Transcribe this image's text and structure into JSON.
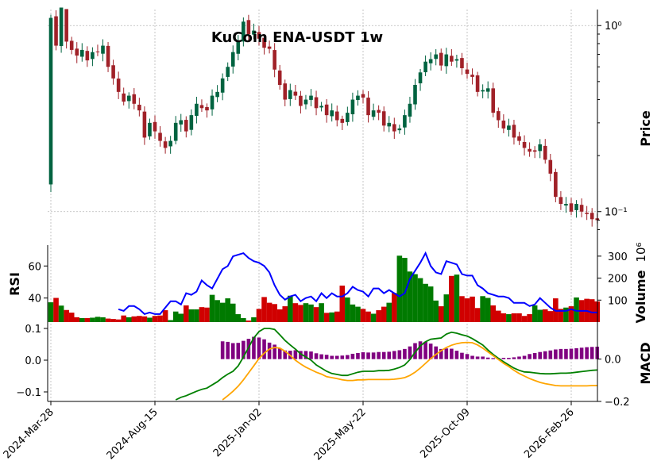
{
  "colors": {
    "up": "#006340",
    "down": "#A02128",
    "vol_up": "#007a00",
    "vol_down": "#d00000",
    "rsi_line": "#0000ff",
    "macd_line": "#008000",
    "signal_line": "#ffa500",
    "hist": "#800080",
    "grid": "#b8b8b8"
  },
  "chart_data": {
    "type": "candlestick",
    "title": "KuCoin ENA-USDT 1w",
    "x_tick_labels": [
      "2024-Mar-28",
      "2024-Aug-15",
      "2025-Jan-02",
      "2025-May-22",
      "2025-Oct-09",
      "2026-Feb-26"
    ],
    "x_tick_index": [
      0,
      20,
      40,
      60,
      80,
      100
    ],
    "price_panel": {
      "ylabel": "Price",
      "scale": "log",
      "ylim": [
        0.068,
        1.22
      ],
      "tick_values": [
        0.1,
        1.0
      ],
      "tick_labels": [
        "10⁻¹",
        "10⁰"
      ]
    },
    "rsi_panel": {
      "ylabel": "RSI",
      "ylim": [
        25,
        73
      ],
      "ticks": [
        40,
        60
      ]
    },
    "volume_panel": {
      "ylabel": "Volume",
      "exponent_label": "10⁶",
      "ylim": [
        0,
        350
      ],
      "ticks": [
        100,
        200,
        300
      ]
    },
    "macd_panel": {
      "ylabel": "MACD",
      "left_ylim": [
        -0.13,
        0.11
      ],
      "left_ticks": [
        -0.1,
        0.0,
        0.1
      ],
      "left_tick_labels": [
        "−0.1",
        "0.0",
        "0.1"
      ],
      "right_ylim": [
        -0.2,
        0.16
      ],
      "right_ticks": [
        -0.2,
        0.0
      ],
      "right_tick_labels": [
        "−0.2",
        "0.0"
      ]
    },
    "close": [
      1.1,
      0.78,
      1.25,
      0.82,
      0.74,
      0.69,
      0.74,
      0.65,
      0.72,
      0.72,
      0.78,
      0.6,
      0.52,
      0.44,
      0.39,
      0.42,
      0.38,
      0.35,
      0.25,
      0.3,
      0.27,
      0.24,
      0.22,
      0.24,
      0.3,
      0.31,
      0.27,
      0.33,
      0.38,
      0.36,
      0.35,
      0.42,
      0.44,
      0.52,
      0.6,
      0.72,
      0.82,
      1.05,
      0.9,
      0.94,
      0.85,
      0.76,
      0.75,
      0.58,
      0.48,
      0.4,
      0.45,
      0.42,
      0.37,
      0.4,
      0.42,
      0.36,
      0.37,
      0.33,
      0.35,
      0.31,
      0.3,
      0.34,
      0.4,
      0.42,
      0.41,
      0.33,
      0.35,
      0.34,
      0.29,
      0.3,
      0.27,
      0.28,
      0.33,
      0.38,
      0.48,
      0.56,
      0.64,
      0.66,
      0.7,
      0.61,
      0.7,
      0.64,
      0.66,
      0.59,
      0.55,
      0.53,
      0.44,
      0.45,
      0.46,
      0.34,
      0.31,
      0.28,
      0.29,
      0.25,
      0.24,
      0.22,
      0.21,
      0.21,
      0.23,
      0.19,
      0.16,
      0.12,
      0.11,
      0.11,
      0.1,
      0.11,
      0.1,
      0.097,
      0.091,
      0.09
    ],
    "rsi": [
      null,
      null,
      null,
      null,
      null,
      null,
      null,
      null,
      null,
      null,
      null,
      null,
      null,
      33,
      32,
      35,
      35,
      33,
      30,
      31,
      30,
      30,
      34,
      38,
      38,
      36,
      43,
      42,
      44,
      51,
      48,
      46,
      52,
      58,
      60,
      66,
      67,
      68,
      65,
      63,
      62,
      60,
      56,
      48,
      42,
      39,
      41,
      42,
      38,
      40,
      41,
      38,
      43,
      40,
      43,
      41,
      41,
      43,
      47,
      45,
      44,
      41,
      46,
      46,
      43,
      45,
      43,
      41,
      43,
      52,
      57,
      62,
      68,
      60,
      56,
      55,
      63,
      62,
      61,
      55,
      54,
      54,
      48,
      46,
      43,
      42,
      41,
      41,
      40,
      37,
      37,
      37,
      35,
      36,
      40,
      37,
      34,
      32,
      32,
      32,
      33,
      32,
      32,
      32,
      31,
      31
    ],
    "volume": [
      90,
      110,
      75,
      55,
      43,
      22,
      18,
      18,
      20,
      24,
      22,
      16,
      14,
      12,
      30,
      22,
      26,
      28,
      26,
      20,
      28,
      30,
      54,
      9,
      48,
      38,
      76,
      58,
      58,
      68,
      66,
      124,
      100,
      88,
      108,
      84,
      36,
      18,
      7,
      22,
      60,
      114,
      88,
      82,
      58,
      72,
      120,
      86,
      78,
      86,
      80,
      68,
      86,
      42,
      44,
      48,
      166,
      112,
      80,
      70,
      60,
      48,
      38,
      54,
      70,
      88,
      132,
      302,
      292,
      230,
      218,
      200,
      174,
      162,
      98,
      72,
      126,
      210,
      216,
      118,
      108,
      116,
      64,
      118,
      110,
      76,
      52,
      40,
      36,
      40,
      40,
      28,
      36,
      76,
      56,
      58,
      50,
      108,
      60,
      66,
      72,
      112,
      100,
      106,
      104,
      94
    ],
    "macd": [
      null,
      null,
      null,
      null,
      null,
      null,
      null,
      null,
      null,
      null,
      null,
      null,
      null,
      null,
      null,
      null,
      null,
      null,
      null,
      null,
      null,
      null,
      null,
      null,
      -0.125,
      -0.117,
      -0.112,
      -0.105,
      -0.098,
      -0.092,
      -0.088,
      -0.078,
      -0.068,
      -0.055,
      -0.044,
      -0.035,
      -0.018,
      0.01,
      0.04,
      0.07,
      0.09,
      0.1,
      0.1,
      0.097,
      0.08,
      0.062,
      0.048,
      0.035,
      0.02,
      0.01,
      0.0,
      -0.015,
      -0.025,
      -0.035,
      -0.042,
      -0.045,
      -0.048,
      -0.048,
      -0.043,
      -0.038,
      -0.035,
      -0.035,
      -0.035,
      -0.033,
      -0.033,
      -0.032,
      -0.028,
      -0.023,
      -0.015,
      0.002,
      0.025,
      0.045,
      0.058,
      0.066,
      0.068,
      0.07,
      0.082,
      0.088,
      0.085,
      0.08,
      0.076,
      0.068,
      0.058,
      0.048,
      0.032,
      0.018,
      0.006,
      -0.005,
      -0.015,
      -0.025,
      -0.032,
      -0.037,
      -0.038,
      -0.04,
      -0.042,
      -0.043,
      -0.043,
      -0.042,
      -0.041,
      -0.041,
      -0.04,
      -0.038,
      -0.036,
      -0.034,
      -0.032,
      -0.031
    ],
    "signal": [
      null,
      null,
      null,
      null,
      null,
      null,
      null,
      null,
      null,
      null,
      null,
      null,
      null,
      null,
      null,
      null,
      null,
      null,
      null,
      null,
      null,
      null,
      null,
      null,
      null,
      null,
      null,
      null,
      null,
      null,
      null,
      null,
      null,
      -0.125,
      -0.112,
      -0.098,
      -0.082,
      -0.062,
      -0.04,
      -0.018,
      0.005,
      0.022,
      0.035,
      0.04,
      0.038,
      0.028,
      0.015,
      0.0,
      -0.012,
      -0.022,
      -0.03,
      -0.038,
      -0.044,
      -0.052,
      -0.055,
      -0.058,
      -0.062,
      -0.064,
      -0.064,
      -0.062,
      -0.062,
      -0.061,
      -0.061,
      -0.061,
      -0.061,
      -0.061,
      -0.06,
      -0.058,
      -0.055,
      -0.048,
      -0.038,
      -0.025,
      -0.01,
      0.005,
      0.018,
      0.03,
      0.04,
      0.047,
      0.052,
      0.055,
      0.056,
      0.055,
      0.048,
      0.038,
      0.026,
      0.014,
      0.002,
      -0.01,
      -0.02,
      -0.032,
      -0.042,
      -0.05,
      -0.058,
      -0.064,
      -0.07,
      -0.074,
      -0.077,
      -0.08,
      -0.081,
      -0.081,
      -0.081,
      -0.081,
      -0.081,
      -0.081,
      -0.08,
      -0.08
    ]
  }
}
